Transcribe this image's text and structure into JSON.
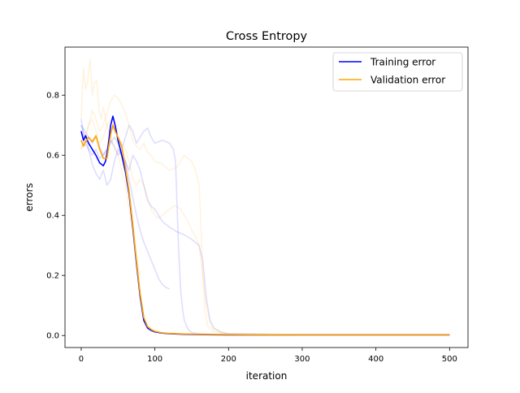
{
  "chart_data": {
    "type": "line",
    "title": "Cross Entropy",
    "xlabel": "iteration",
    "ylabel": "errors",
    "xlim": [
      -22,
      525
    ],
    "ylim": [
      -0.04,
      0.96
    ],
    "xticks": [
      0,
      100,
      200,
      300,
      400,
      500
    ],
    "yticks": [
      0.0,
      0.2,
      0.4,
      0.6,
      0.8
    ],
    "xtick_labels": [
      "0",
      "100",
      "200",
      "300",
      "400",
      "500"
    ],
    "ytick_labels": [
      "0.0",
      "0.2",
      "0.4",
      "0.6",
      "0.8"
    ],
    "grid": false,
    "legend_position": "top-right",
    "legend": [
      {
        "label": "Training error",
        "color": "#0000ff"
      },
      {
        "label": "Validation error",
        "color": "#ffa500"
      }
    ],
    "series": [
      {
        "name": "Training error",
        "color": "#0000ff",
        "opacity": 1,
        "x": [
          0,
          3,
          6,
          10,
          15,
          20,
          25,
          30,
          33,
          36,
          40,
          43,
          46,
          50,
          55,
          60,
          65,
          70,
          75,
          80,
          85,
          90,
          95,
          100,
          110,
          120,
          140,
          160,
          200,
          300,
          400,
          500
        ],
        "y": [
          0.68,
          0.65,
          0.665,
          0.64,
          0.62,
          0.6,
          0.575,
          0.565,
          0.58,
          0.62,
          0.7,
          0.73,
          0.7,
          0.65,
          0.6,
          0.545,
          0.47,
          0.36,
          0.24,
          0.13,
          0.05,
          0.025,
          0.017,
          0.012,
          0.008,
          0.006,
          0.004,
          0.003,
          0.002,
          0.002,
          0.002,
          0.002
        ]
      },
      {
        "name": "Validation error",
        "color": "#ffa500",
        "opacity": 1,
        "x": [
          0,
          3,
          6,
          10,
          15,
          20,
          25,
          30,
          35,
          40,
          43,
          46,
          50,
          55,
          60,
          65,
          70,
          75,
          80,
          85,
          90,
          95,
          100,
          110,
          120,
          140,
          160,
          200,
          300,
          400,
          500
        ],
        "y": [
          0.65,
          0.63,
          0.645,
          0.66,
          0.645,
          0.665,
          0.62,
          0.59,
          0.59,
          0.67,
          0.7,
          0.68,
          0.66,
          0.63,
          0.56,
          0.48,
          0.37,
          0.25,
          0.14,
          0.06,
          0.03,
          0.02,
          0.014,
          0.009,
          0.007,
          0.005,
          0.004,
          0.003,
          0.002,
          0.002,
          0.002
        ]
      },
      {
        "color": "#0000ff",
        "opacity": 0.13,
        "x": [
          0,
          5,
          10,
          15,
          20,
          25,
          30,
          35,
          40,
          45,
          50,
          55,
          60,
          65,
          70,
          75,
          80,
          85,
          90,
          95,
          100,
          110,
          120,
          125,
          128,
          132,
          135,
          138,
          140,
          145,
          150,
          155,
          160,
          170,
          180,
          200,
          300,
          400,
          500
        ],
        "y": [
          0.7,
          0.68,
          0.66,
          0.64,
          0.66,
          0.63,
          0.6,
          0.62,
          0.65,
          0.63,
          0.6,
          0.62,
          0.66,
          0.7,
          0.68,
          0.64,
          0.66,
          0.68,
          0.69,
          0.66,
          0.64,
          0.65,
          0.64,
          0.62,
          0.58,
          0.3,
          0.15,
          0.08,
          0.05,
          0.02,
          0.01,
          0.008,
          0.006,
          0.005,
          0.004,
          0.003,
          0.002,
          0.002,
          0.002
        ]
      },
      {
        "color": "#0000ff",
        "opacity": 0.13,
        "x": [
          0,
          5,
          10,
          15,
          20,
          25,
          30,
          35,
          40,
          45,
          50,
          55,
          60,
          65,
          70,
          75,
          80,
          85,
          90,
          95,
          100,
          110,
          120,
          130,
          140,
          150,
          160,
          165,
          170,
          175,
          180,
          190,
          200,
          300,
          400,
          500
        ],
        "y": [
          0.7,
          0.66,
          0.62,
          0.57,
          0.54,
          0.52,
          0.55,
          0.5,
          0.52,
          0.58,
          0.62,
          0.6,
          0.58,
          0.55,
          0.6,
          0.58,
          0.55,
          0.5,
          0.45,
          0.43,
          0.42,
          0.38,
          0.36,
          0.345,
          0.335,
          0.32,
          0.3,
          0.25,
          0.12,
          0.05,
          0.025,
          0.012,
          0.006,
          0.003,
          0.003,
          0.003
        ]
      },
      {
        "color": "#0000ff",
        "opacity": 0.13,
        "x": [
          0,
          5,
          10,
          15,
          20,
          25,
          30,
          35,
          40,
          45,
          50,
          55,
          60,
          65,
          70,
          75,
          80,
          85,
          90,
          95,
          100,
          105,
          110,
          115,
          120
        ],
        "y": [
          0.72,
          0.64,
          0.62,
          0.6,
          0.62,
          0.59,
          0.6,
          0.62,
          0.64,
          0.66,
          0.64,
          0.61,
          0.58,
          0.52,
          0.46,
          0.4,
          0.35,
          0.31,
          0.28,
          0.25,
          0.22,
          0.19,
          0.17,
          0.16,
          0.155
        ]
      },
      {
        "color": "#ffa500",
        "opacity": 0.13,
        "x": [
          0,
          3,
          6,
          9,
          12,
          15,
          18,
          21,
          24,
          27,
          30,
          35,
          40,
          45,
          50,
          55,
          60,
          65,
          70,
          75,
          80
        ],
        "y": [
          0.72,
          0.89,
          0.82,
          0.85,
          0.92,
          0.8,
          0.84,
          0.85,
          0.75,
          0.72,
          0.76,
          0.7,
          0.66,
          0.62,
          0.6,
          0.55,
          0.5,
          0.42,
          0.35,
          0.26,
          0.2
        ]
      },
      {
        "color": "#ffa500",
        "opacity": 0.13,
        "x": [
          0,
          5,
          10,
          15,
          20,
          25,
          30,
          35,
          40,
          45,
          50,
          55,
          60,
          65,
          70,
          75,
          80,
          85,
          90,
          95,
          100,
          110,
          120,
          130,
          140,
          150,
          155,
          160,
          162,
          165,
          168,
          172,
          180,
          200,
          300,
          400,
          500
        ],
        "y": [
          0.62,
          0.66,
          0.7,
          0.75,
          0.72,
          0.68,
          0.7,
          0.74,
          0.78,
          0.8,
          0.79,
          0.77,
          0.74,
          0.7,
          0.65,
          0.63,
          0.62,
          0.64,
          0.61,
          0.6,
          0.58,
          0.57,
          0.55,
          0.56,
          0.6,
          0.58,
          0.55,
          0.5,
          0.4,
          0.2,
          0.08,
          0.03,
          0.012,
          0.005,
          0.003,
          0.003,
          0.003
        ]
      },
      {
        "color": "#ffa500",
        "opacity": 0.13,
        "x": [
          0,
          5,
          10,
          15,
          20,
          25,
          30,
          35,
          40,
          45,
          50,
          55,
          60,
          65,
          70,
          75,
          80,
          85,
          90,
          95,
          100,
          105,
          110,
          115,
          120,
          125,
          130,
          135,
          140,
          145,
          150,
          155,
          160,
          165,
          170,
          175,
          180,
          190,
          200,
          300,
          400,
          500
        ],
        "y": [
          0.62,
          0.65,
          0.7,
          0.72,
          0.68,
          0.64,
          0.66,
          0.7,
          0.72,
          0.69,
          0.66,
          0.64,
          0.62,
          0.58,
          0.52,
          0.5,
          0.52,
          0.5,
          0.46,
          0.42,
          0.4,
          0.39,
          0.4,
          0.41,
          0.42,
          0.43,
          0.43,
          0.42,
          0.4,
          0.38,
          0.35,
          0.33,
          0.3,
          0.2,
          0.1,
          0.04,
          0.02,
          0.008,
          0.004,
          0.003,
          0.003,
          0.003
        ]
      }
    ]
  }
}
